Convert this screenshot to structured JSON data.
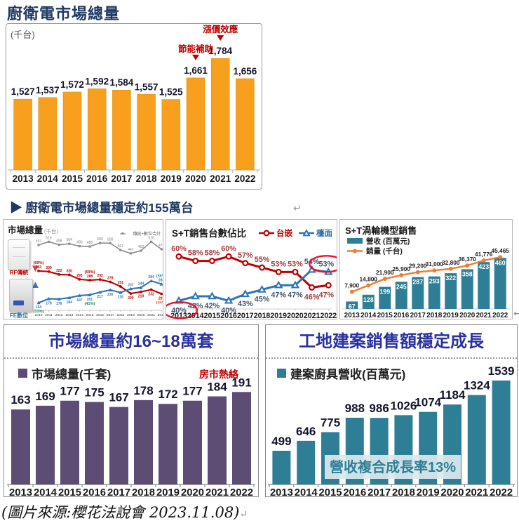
{
  "page": {
    "title": "廚衛電市場總量",
    "section_header": "▶ 廚衛電市場總量穩定約155萬台",
    "source_note": "(圖片來源:櫻花法說會 2023.11.08)",
    "return_mark": "↵"
  },
  "colors": {
    "navy_title": "#1F3864",
    "chart_title_blue": "#2B32A0",
    "orange_bar": "#F8A01E",
    "annotation_red": "#C00000",
    "gray_series": "#8C8C8C",
    "red_series": "#C00000",
    "blue_series": "#2E75B6",
    "teal_bar": "#2E7F96",
    "orange_line": "#ED7D31",
    "purple_bar": "#5D4D75"
  },
  "chart_data": [
    {
      "id": "kitchen-bath-market-total",
      "type": "bar",
      "title": "廚衛電市場總量",
      "unit_label": "(千台)",
      "categories": [
        "2013",
        "2014",
        "2015",
        "2016",
        "2017",
        "2018",
        "2019",
        "2020",
        "2021",
        "2022"
      ],
      "values": [
        1527,
        1537,
        1572,
        1592,
        1584,
        1557,
        1525,
        1661,
        1784,
        1656
      ],
      "bar_color": "#F8A01E",
      "annotations": [
        {
          "text": "節能補助",
          "category": "2020",
          "color": "#C00000"
        },
        {
          "text": "漲價效應",
          "category": "2021",
          "color": "#C00000"
        }
      ]
    },
    {
      "id": "market-total-by-type",
      "type": "line",
      "title": "市場總量",
      "unit_label": "(千台)",
      "legend": "傳統+數位合計",
      "x": [
        "2010",
        "2011",
        "2012",
        "2013",
        "2014",
        "2015",
        "2016",
        "2017",
        "2018",
        "2019",
        "2020",
        "2021",
        "2022"
      ],
      "series": [
        {
          "name": "傳統+數位合計",
          "color": "#8C8C8C",
          "values": [
            497,
            516,
            498,
            504,
            490,
            488,
            509,
            508,
            467,
            447,
            463,
            516,
            472
          ]
        },
        {
          "name": "RF傳統",
          "color": "#C00000",
          "values": [
            343,
            339,
            322,
            320,
            293,
            288,
            292,
            278,
            251,
            209,
            219,
            232,
            207
          ]
        },
        {
          "name": "FE數位",
          "color": "#2E75B6",
          "values": [
            154,
            178,
            176,
            184,
            197,
            201,
            217,
            230,
            215,
            237,
            244,
            284,
            265
          ]
        }
      ],
      "pct_annotations": [
        {
          "text": "(69%)",
          "series": 1,
          "index": 0,
          "pos": "above",
          "color": "#C00000"
        },
        {
          "text": "(59%)",
          "series": 1,
          "index": 5,
          "pos": "above",
          "color": "#C00000"
        },
        {
          "text": "(44%)",
          "series": 1,
          "index": 12,
          "pos": "below",
          "color": "#D9531E"
        },
        {
          "text": "(31%)",
          "series": 2,
          "index": 0,
          "pos": "below",
          "color": "#1E8449"
        },
        {
          "text": "(41%)",
          "series": 2,
          "index": 5,
          "pos": "below",
          "color": "#1E8449"
        },
        {
          "text": "(56%)",
          "series": 2,
          "index": 12,
          "pos": "above",
          "color": "#2E90B0"
        }
      ],
      "product_images": [
        {
          "label": "RF傳統",
          "label_color": "#C00000",
          "trend": "down"
        },
        {
          "label": "FE數位",
          "label_color": "#2E75B6",
          "trend": "up"
        }
      ]
    },
    {
      "id": "st-sales-unit-share",
      "type": "line",
      "title": "S+T銷售台數佔比",
      "unit": "%",
      "x": [
        "2013",
        "2014",
        "2015",
        "2016",
        "2017",
        "2018",
        "2019",
        "2020",
        "2021",
        "2022"
      ],
      "series": [
        {
          "name": "台嵌",
          "color": "#C00000",
          "marker": "circle",
          "label_color": "#A63C3C",
          "values": [
            60,
            58,
            58,
            60,
            57,
            55,
            53,
            53,
            46,
            47
          ]
        },
        {
          "name": "檯面",
          "color": "#2E75B6",
          "marker": "triangle",
          "label_color": "#44546A",
          "values": [
            40,
            42,
            42,
            40,
            43,
            45,
            47,
            47,
            54,
            53
          ]
        }
      ],
      "circled_labels": [
        {
          "series": 1,
          "index": 0
        },
        {
          "series": 1,
          "index": 9
        }
      ]
    },
    {
      "id": "st-turbo-model-sales",
      "type": "combo",
      "title": "S+T渦輪機型銷售",
      "x": [
        "2013",
        "2014",
        "2015",
        "2016",
        "2017",
        "2018",
        "2019",
        "2020",
        "2021",
        "2022"
      ],
      "bar_series": {
        "name": "營收 (百萬元)",
        "color": "#2E7F96",
        "values": [
          67,
          128,
          199,
          245,
          287,
          293,
          322,
          358,
          423,
          460
        ]
      },
      "line_series": {
        "name": "銷量 (千台)",
        "color": "#ED7D31",
        "values": [
          7900,
          14800,
          21900,
          25900,
          29200,
          31000,
          32800,
          36370,
          41776,
          45465
        ]
      }
    },
    {
      "id": "kitchen-sets-market",
      "type": "bar",
      "title": "市場總量約16~18萬套",
      "legend": "市場總量(千套)",
      "bar_color": "#5D4D75",
      "annotation": {
        "text": "房市熱絡",
        "color": "#C00000"
      },
      "categories": [
        "2013",
        "2014",
        "2015",
        "2016",
        "2017",
        "2018",
        "2019",
        "2020",
        "2021",
        "2022"
      ],
      "values": [
        163,
        169,
        177,
        175,
        167,
        178,
        172,
        177,
        184,
        191
      ]
    },
    {
      "id": "construction-project-revenue",
      "type": "bar",
      "title": "工地建案銷售額穩定成長",
      "legend": "建案廚具營收(百萬元)",
      "bar_color": "#2E7F96",
      "overlay_label": "營收複合成長率13%",
      "categories": [
        "2013",
        "2014",
        "2015",
        "2016",
        "2017",
        "2018",
        "2019",
        "2020",
        "2021",
        "2022"
      ],
      "values": [
        499,
        646,
        775,
        988,
        986,
        1026,
        1074,
        1184,
        1324,
        1539
      ]
    }
  ]
}
